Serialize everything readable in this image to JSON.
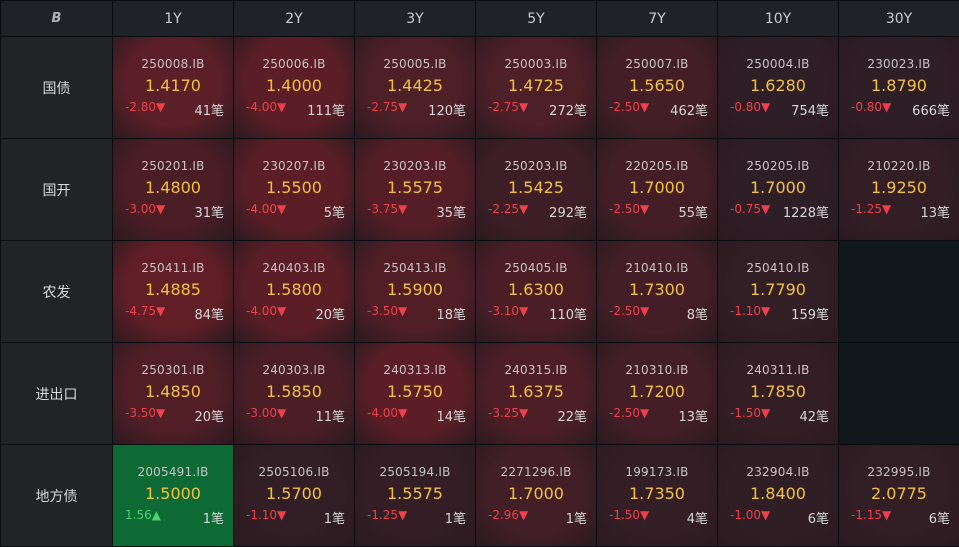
{
  "header": {
    "logo": "B",
    "tenors": [
      "1Y",
      "2Y",
      "3Y",
      "5Y",
      "7Y",
      "10Y",
      "30Y"
    ]
  },
  "rows": [
    {
      "label": "国债",
      "cells": [
        {
          "code": "250008.IB",
          "yield": "1.4170",
          "chg": "-2.80▼",
          "cnt": "41笔",
          "bg": "#5b1f27",
          "dir": "down"
        },
        {
          "code": "250006.IB",
          "yield": "1.4000",
          "chg": "-4.00▼",
          "cnt": "111笔",
          "bg": "#5c1e26",
          "dir": "down"
        },
        {
          "code": "250005.IB",
          "yield": "1.4425",
          "chg": "-2.75▼",
          "cnt": "120笔",
          "bg": "#4d1f27",
          "dir": "down"
        },
        {
          "code": "250003.IB",
          "yield": "1.4725",
          "chg": "-2.75▼",
          "cnt": "272笔",
          "bg": "#4d1f27",
          "dir": "down"
        },
        {
          "code": "250007.IB",
          "yield": "1.5650",
          "chg": "-2.50▼",
          "cnt": "462笔",
          "bg": "#441e26",
          "dir": "down"
        },
        {
          "code": "250004.IB",
          "yield": "1.6280",
          "chg": "-0.80▼",
          "cnt": "754笔",
          "bg": "#2e1e25",
          "dir": "down"
        },
        {
          "code": "230023.IB",
          "yield": "1.8790",
          "chg": "-0.80▼",
          "cnt": "666笔",
          "bg": "#2e1e25",
          "dir": "down"
        }
      ]
    },
    {
      "label": "国开",
      "cells": [
        {
          "code": "250201.IB",
          "yield": "1.4800",
          "chg": "-3.00▼",
          "cnt": "31笔",
          "bg": "#4b1d25",
          "dir": "down"
        },
        {
          "code": "230207.IB",
          "yield": "1.5500",
          "chg": "-4.00▼",
          "cnt": "5笔",
          "bg": "#5c1e26",
          "dir": "down"
        },
        {
          "code": "230203.IB",
          "yield": "1.5575",
          "chg": "-3.75▼",
          "cnt": "35笔",
          "bg": "#551e26",
          "dir": "down"
        },
        {
          "code": "250203.IB",
          "yield": "1.5425",
          "chg": "-2.25▼",
          "cnt": "292笔",
          "bg": "#3e1e26",
          "dir": "down"
        },
        {
          "code": "220205.IB",
          "yield": "1.7000",
          "chg": "-2.50▼",
          "cnt": "55笔",
          "bg": "#441e26",
          "dir": "down"
        },
        {
          "code": "250205.IB",
          "yield": "1.7000",
          "chg": "-0.75▼",
          "cnt": "1228笔",
          "bg": "#2e1e25",
          "dir": "down"
        },
        {
          "code": "210220.IB",
          "yield": "1.9250",
          "chg": "-1.25▼",
          "cnt": "13笔",
          "bg": "#331e25",
          "dir": "down"
        }
      ]
    },
    {
      "label": "农发",
      "cells": [
        {
          "code": "250411.IB",
          "yield": "1.4885",
          "chg": "-4.75▼",
          "cnt": "84笔",
          "bg": "#611e27",
          "dir": "down"
        },
        {
          "code": "240403.IB",
          "yield": "1.5800",
          "chg": "-4.00▼",
          "cnt": "20笔",
          "bg": "#5c1e26",
          "dir": "down"
        },
        {
          "code": "250413.IB",
          "yield": "1.5900",
          "chg": "-3.50▼",
          "cnt": "18笔",
          "bg": "#511e26",
          "dir": "down"
        },
        {
          "code": "250405.IB",
          "yield": "1.6300",
          "chg": "-3.10▼",
          "cnt": "110笔",
          "bg": "#4b1e26",
          "dir": "down"
        },
        {
          "code": "210410.IB",
          "yield": "1.7300",
          "chg": "-2.50▼",
          "cnt": "8笔",
          "bg": "#441e26",
          "dir": "down"
        },
        {
          "code": "250410.IB",
          "yield": "1.7790",
          "chg": "-1.10▼",
          "cnt": "159笔",
          "bg": "#321e25",
          "dir": "down"
        },
        null
      ]
    },
    {
      "label": "进出口",
      "cells": [
        {
          "code": "250301.IB",
          "yield": "1.4850",
          "chg": "-3.50▼",
          "cnt": "20笔",
          "bg": "#511e26",
          "dir": "down"
        },
        {
          "code": "240303.IB",
          "yield": "1.5850",
          "chg": "-3.00▼",
          "cnt": "11笔",
          "bg": "#4b1e26",
          "dir": "down"
        },
        {
          "code": "240313.IB",
          "yield": "1.5750",
          "chg": "-4.00▼",
          "cnt": "14笔",
          "bg": "#5c1e26",
          "dir": "down"
        },
        {
          "code": "240315.IB",
          "yield": "1.6375",
          "chg": "-3.25▼",
          "cnt": "22笔",
          "bg": "#4e1e26",
          "dir": "down"
        },
        {
          "code": "210310.IB",
          "yield": "1.7200",
          "chg": "-2.50▼",
          "cnt": "13笔",
          "bg": "#441e26",
          "dir": "down"
        },
        {
          "code": "240311.IB",
          "yield": "1.7850",
          "chg": "-1.50▼",
          "cnt": "42笔",
          "bg": "#341e25",
          "dir": "down"
        },
        null
      ]
    },
    {
      "label": "地方债",
      "cells": [
        {
          "code": "2005491.IB",
          "yield": "1.5000",
          "chg": "1.56▲",
          "cnt": "1笔",
          "bg": "#0e6a34",
          "dir": "up"
        },
        {
          "code": "2505106.IB",
          "yield": "1.5700",
          "chg": "-1.10▼",
          "cnt": "1笔",
          "bg": "#321e25",
          "dir": "down"
        },
        {
          "code": "2505194.IB",
          "yield": "1.5575",
          "chg": "-1.25▼",
          "cnt": "1笔",
          "bg": "#331e25",
          "dir": "down"
        },
        {
          "code": "2271296.IB",
          "yield": "1.7000",
          "chg": "-2.96▼",
          "cnt": "1笔",
          "bg": "#421e26",
          "dir": "down"
        },
        {
          "code": "199173.IB",
          "yield": "1.7350",
          "chg": "-1.50▼",
          "cnt": "4笔",
          "bg": "#341e25",
          "dir": "down"
        },
        {
          "code": "232904.IB",
          "yield": "1.8400",
          "chg": "-1.00▼",
          "cnt": "6笔",
          "bg": "#301e25",
          "dir": "down"
        },
        {
          "code": "232995.IB",
          "yield": "2.0775",
          "chg": "-1.15▼",
          "cnt": "6笔",
          "bg": "#321e25",
          "dir": "down"
        }
      ]
    }
  ]
}
